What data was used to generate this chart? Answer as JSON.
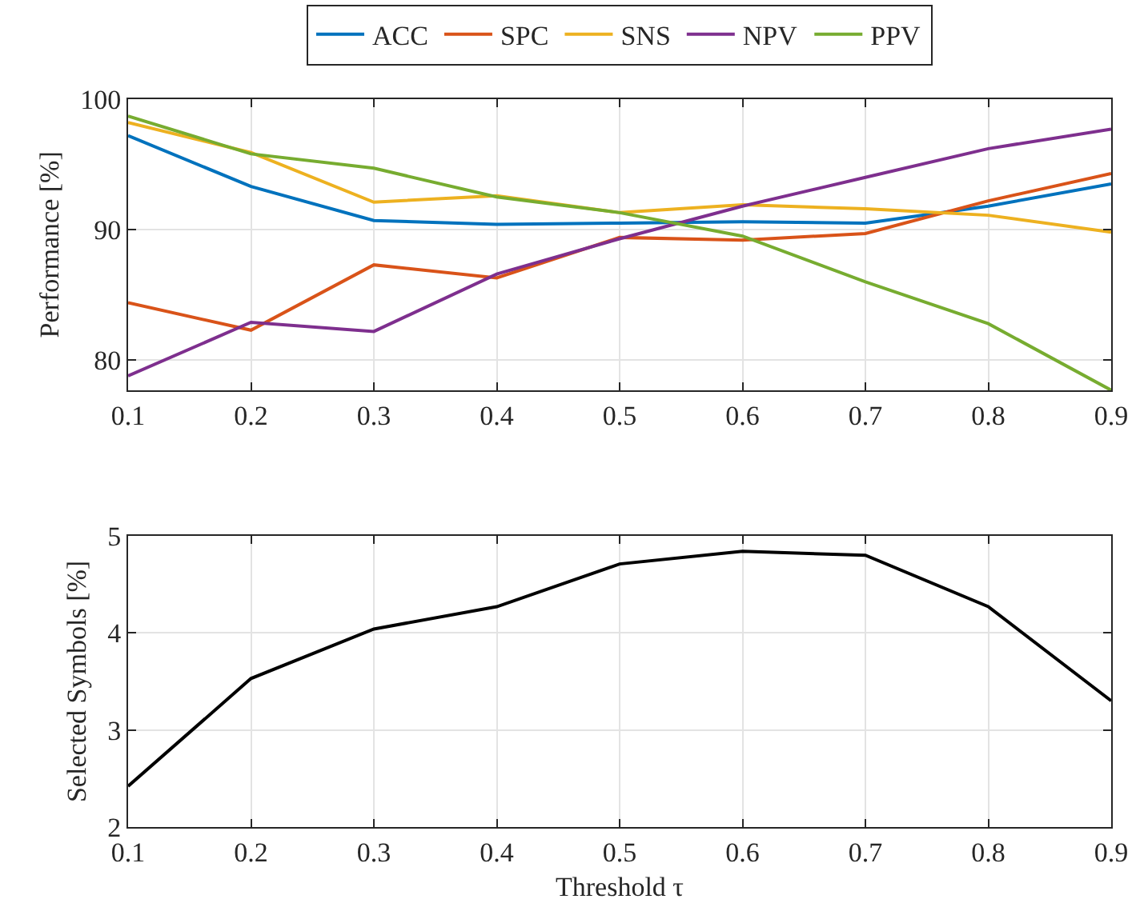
{
  "chart_data": [
    {
      "type": "line",
      "ylabel": "Performance [%]",
      "x": [
        0.1,
        0.2,
        0.3,
        0.4,
        0.5,
        0.6,
        0.7,
        0.8,
        0.9
      ],
      "xlim": [
        0.1,
        0.9
      ],
      "xticks": [
        0.1,
        0.2,
        0.3,
        0.4,
        0.5,
        0.6,
        0.7,
        0.8,
        0.9
      ],
      "ylim": [
        77.7,
        100
      ],
      "yticks": [
        80,
        90,
        100
      ],
      "grid": true,
      "legend": "top",
      "marker": "none",
      "line_style": "solid",
      "series": [
        {
          "name": "ACC",
          "color": "#0072bd",
          "values": [
            97.2,
            93.3,
            90.7,
            90.4,
            90.5,
            90.6,
            90.5,
            91.8,
            93.5
          ]
        },
        {
          "name": "SPC",
          "color": "#d95319",
          "values": [
            84.4,
            82.3,
            87.3,
            86.3,
            89.4,
            89.2,
            89.7,
            92.2,
            94.3
          ]
        },
        {
          "name": "SNS",
          "color": "#edb120",
          "values": [
            98.2,
            95.9,
            92.1,
            92.6,
            91.3,
            91.9,
            91.6,
            91.1,
            89.8
          ]
        },
        {
          "name": "NPV",
          "color": "#7e2f8e",
          "values": [
            78.8,
            82.9,
            82.2,
            86.6,
            89.3,
            91.8,
            94.0,
            96.2,
            97.7
          ]
        },
        {
          "name": "PPV",
          "color": "#77ac30",
          "values": [
            98.7,
            95.8,
            94.7,
            92.5,
            91.3,
            89.5,
            86.0,
            82.8,
            77.7
          ]
        }
      ]
    },
    {
      "type": "line",
      "xlabel": "Threshold τ",
      "ylabel": "Selected Symbols [%]",
      "x": [
        0.1,
        0.2,
        0.3,
        0.4,
        0.5,
        0.6,
        0.7,
        0.8,
        0.9
      ],
      "xlim": [
        0.1,
        0.9
      ],
      "xticks": [
        0.1,
        0.2,
        0.3,
        0.4,
        0.5,
        0.6,
        0.7,
        0.8,
        0.9
      ],
      "ylim": [
        2,
        5
      ],
      "yticks": [
        2,
        3,
        4,
        5
      ],
      "grid": true,
      "marker": "none",
      "line_style": "solid",
      "series": [
        {
          "color": "#000000",
          "values": [
            2.42,
            3.53,
            4.04,
            4.27,
            4.71,
            4.84,
            4.8,
            4.27,
            3.3
          ]
        }
      ]
    }
  ]
}
